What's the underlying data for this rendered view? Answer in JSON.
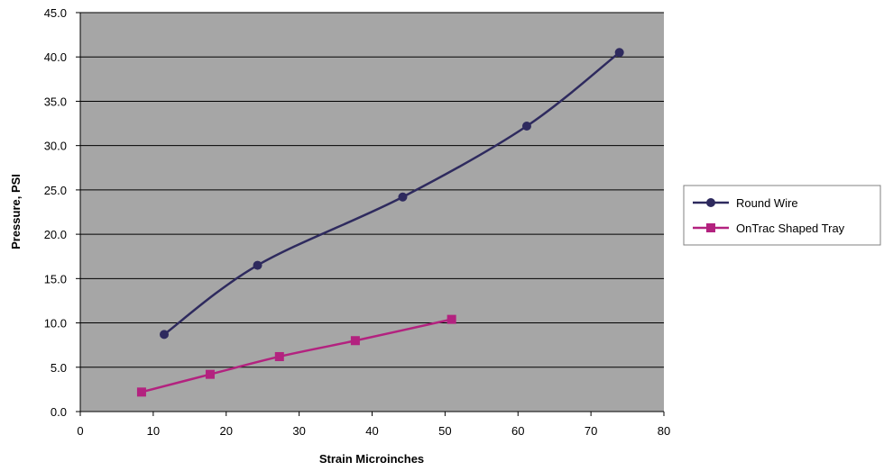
{
  "chart_data": {
    "type": "line",
    "title": "",
    "xlabel": "Strain Microinches",
    "ylabel": "Pressure, PSI",
    "xlim": [
      0,
      80
    ],
    "ylim": [
      0,
      45
    ],
    "xticks": [
      "0",
      "10",
      "20",
      "30",
      "40",
      "50",
      "60",
      "70",
      "80"
    ],
    "yticks": [
      "0.0",
      "5.0",
      "10.0",
      "15.0",
      "20.0",
      "25.0",
      "30.0",
      "35.0",
      "40.0",
      "45.0"
    ],
    "x_tick_values": [
      0,
      10,
      20,
      30,
      40,
      50,
      60,
      70,
      80
    ],
    "y_tick_values": [
      0,
      5,
      10,
      15,
      20,
      25,
      30,
      35,
      40,
      45
    ],
    "grid": "horizontal",
    "plot_background": "#a6a6a6",
    "legend_position": "right",
    "smooth": true,
    "series": [
      {
        "name": "Round Wire",
        "color": "#2e2a5e",
        "marker": "circle",
        "points": [
          {
            "x": 11.5,
            "y": 8.7
          },
          {
            "x": 24.3,
            "y": 16.5
          },
          {
            "x": 44.2,
            "y": 24.2
          },
          {
            "x": 61.2,
            "y": 32.2
          },
          {
            "x": 73.9,
            "y": 40.5
          }
        ]
      },
      {
        "name": "OnTrac Shaped Tray",
        "color": "#b3227f",
        "marker": "square",
        "points": [
          {
            "x": 8.4,
            "y": 2.2
          },
          {
            "x": 17.8,
            "y": 4.2
          },
          {
            "x": 27.3,
            "y": 6.2
          },
          {
            "x": 37.7,
            "y": 8.0
          },
          {
            "x": 50.9,
            "y": 10.4
          }
        ]
      }
    ]
  }
}
